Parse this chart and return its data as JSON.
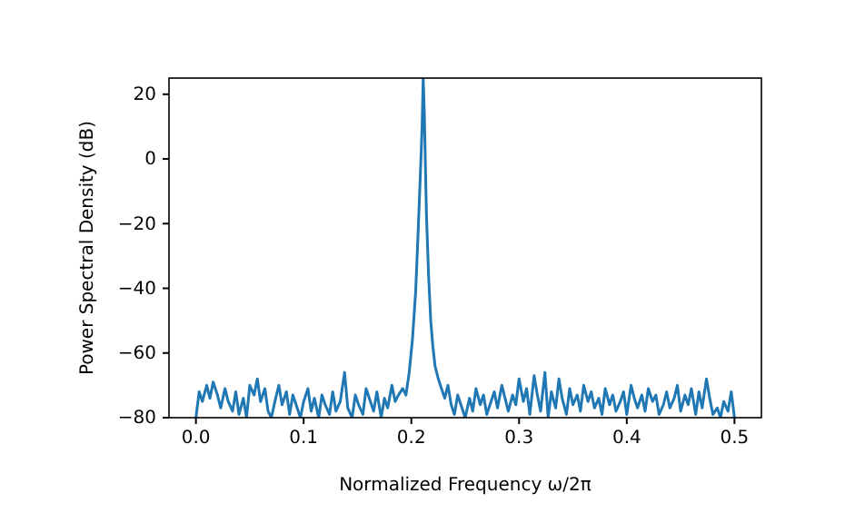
{
  "chart_data": {
    "type": "line",
    "xlabel": "Normalized Frequency ω/2π",
    "ylabel": "Power Spectral Density (dB)",
    "xlim": [
      -0.025,
      0.525
    ],
    "ylim": [
      -80,
      25
    ],
    "xticks": [
      {
        "value": 0,
        "label": "0.0"
      },
      {
        "value": 0.1,
        "label": "0.1"
      },
      {
        "value": 0.2,
        "label": "0.2"
      },
      {
        "value": 0.3,
        "label": "0.3"
      },
      {
        "value": 0.4,
        "label": "0.4"
      },
      {
        "value": 0.5,
        "label": "0.5"
      }
    ],
    "yticks": [
      -80,
      -60,
      -40,
      -20,
      0,
      20
    ],
    "grid": false,
    "marker": "none",
    "line_style": "solid",
    "series": [
      {
        "color": "#1f77b4",
        "x": [
          0,
          0.003,
          0.006,
          0.01,
          0.013,
          0.016,
          0.02,
          0.023,
          0.027,
          0.03,
          0.034,
          0.037,
          0.04,
          0.044,
          0.047,
          0.05,
          0.054,
          0.057,
          0.06,
          0.064,
          0.067,
          0.07,
          0.074,
          0.077,
          0.08,
          0.084,
          0.087,
          0.09,
          0.094,
          0.097,
          0.1,
          0.104,
          0.107,
          0.11,
          0.114,
          0.117,
          0.12,
          0.124,
          0.127,
          0.13,
          0.134,
          0.138,
          0.141,
          0.145,
          0.148,
          0.151,
          0.155,
          0.158,
          0.162,
          0.165,
          0.168,
          0.172,
          0.175,
          0.178,
          0.182,
          0.185,
          0.188,
          0.192,
          0.195,
          0.198,
          0.201,
          0.204,
          0.206,
          0.208,
          0.21,
          0.211,
          0.212,
          0.214,
          0.216,
          0.218,
          0.22,
          0.222,
          0.225,
          0.228,
          0.231,
          0.234,
          0.237,
          0.24,
          0.243,
          0.247,
          0.25,
          0.254,
          0.257,
          0.26,
          0.264,
          0.267,
          0.27,
          0.274,
          0.277,
          0.28,
          0.284,
          0.287,
          0.29,
          0.294,
          0.297,
          0.3,
          0.304,
          0.307,
          0.31,
          0.314,
          0.317,
          0.32,
          0.324,
          0.327,
          0.33,
          0.334,
          0.337,
          0.34,
          0.344,
          0.347,
          0.35,
          0.354,
          0.357,
          0.36,
          0.364,
          0.367,
          0.37,
          0.374,
          0.377,
          0.38,
          0.384,
          0.387,
          0.39,
          0.394,
          0.397,
          0.4,
          0.404,
          0.407,
          0.41,
          0.414,
          0.417,
          0.42,
          0.424,
          0.427,
          0.43,
          0.434,
          0.437,
          0.44,
          0.444,
          0.447,
          0.45,
          0.454,
          0.457,
          0.46,
          0.464,
          0.467,
          0.47,
          0.474,
          0.477,
          0.48,
          0.484,
          0.487,
          0.49,
          0.494,
          0.497,
          0.5
        ],
        "values": [
          -80,
          -72,
          -75,
          -70,
          -74,
          -69,
          -73,
          -77,
          -71,
          -75,
          -78,
          -72,
          -79,
          -74,
          -80,
          -70,
          -73,
          -68,
          -75,
          -71,
          -78,
          -80,
          -74,
          -70,
          -76,
          -72,
          -79,
          -73,
          -77,
          -80,
          -75,
          -71,
          -78,
          -74,
          -80,
          -73,
          -76,
          -79,
          -72,
          -78,
          -75,
          -66,
          -77,
          -80,
          -73,
          -76,
          -79,
          -71,
          -75,
          -78,
          -72,
          -80,
          -74,
          -77,
          -70,
          -75,
          -73,
          -71,
          -73,
          -66,
          -56,
          -41,
          -25,
          -8,
          10,
          25,
          15,
          -17,
          -36,
          -50,
          -58,
          -64,
          -68,
          -71,
          -74,
          -70,
          -76,
          -79,
          -73,
          -77,
          -80,
          -74,
          -78,
          -71,
          -76,
          -73,
          -79,
          -75,
          -72,
          -77,
          -70,
          -74,
          -78,
          -73,
          -76,
          -68,
          -75,
          -71,
          -79,
          -67,
          -73,
          -78,
          -66,
          -80,
          -72,
          -77,
          -68,
          -74,
          -79,
          -71,
          -76,
          -73,
          -78,
          -70,
          -75,
          -72,
          -77,
          -74,
          -79,
          -71,
          -76,
          -73,
          -78,
          -75,
          -72,
          -79,
          -70,
          -74,
          -77,
          -73,
          -78,
          -71,
          -75,
          -73,
          -79,
          -76,
          -72,
          -77,
          -74,
          -70,
          -78,
          -73,
          -76,
          -71,
          -79,
          -72,
          -77,
          -68,
          -74,
          -79,
          -77,
          -80,
          -75,
          -78,
          -72,
          -80
        ]
      }
    ]
  }
}
